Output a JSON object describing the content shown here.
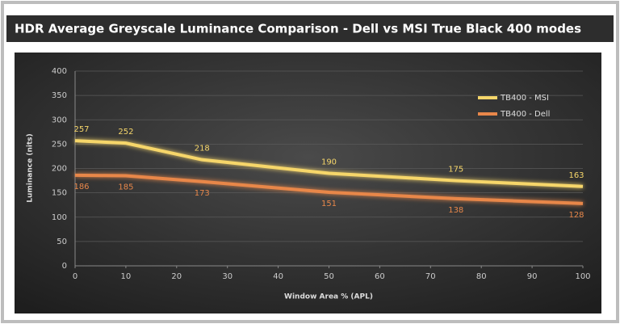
{
  "chart_data": {
    "type": "line",
    "title": "HDR Average Greyscale Luminance Comparison - Dell vs MSI True Black 400 modes",
    "x_label": "Window Area % (APL)",
    "y_label": "Luminance (nits)",
    "x": [
      0,
      10,
      25,
      50,
      75,
      100
    ],
    "series": [
      {
        "name": "TB400 - MSI",
        "color": "#f6d66a",
        "values": [
          257,
          252,
          218,
          190,
          175,
          163
        ]
      },
      {
        "name": "TB400 - Dell",
        "color": "#e8874a",
        "values": [
          186,
          185,
          173,
          151,
          138,
          128
        ]
      }
    ],
    "xlim": [
      0,
      100
    ],
    "xticks": [
      0,
      10,
      20,
      30,
      40,
      50,
      60,
      70,
      80,
      90,
      100
    ],
    "ylim": [
      0,
      400
    ],
    "yticks": [
      0,
      50,
      100,
      150,
      200,
      250,
      300,
      350,
      400
    ],
    "grid": true,
    "legend": "upper right"
  }
}
